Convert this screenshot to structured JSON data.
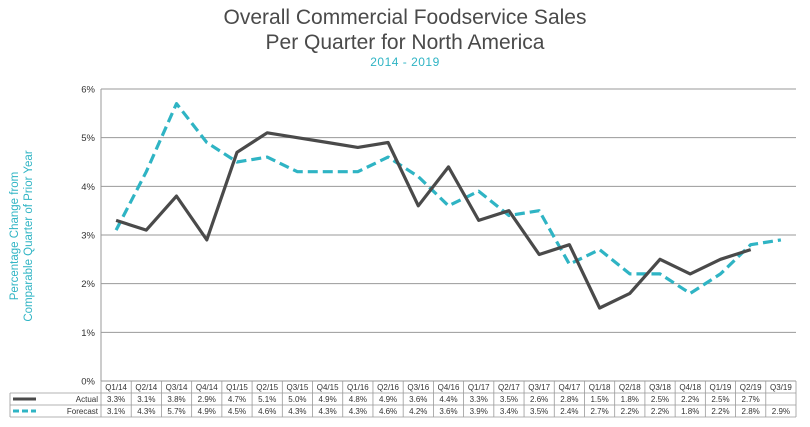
{
  "chart_data": {
    "type": "line",
    "title_line1": "Overall Commercial Foodservice Sales",
    "title_line2": "Per Quarter for North America",
    "subtitle": "2014 - 2019",
    "ylabel_line1": "Percentage Change from",
    "ylabel_line2": "Comparable Quarter of Prior Year",
    "ylim": [
      0,
      6
    ],
    "yticks": [
      "0%",
      "1%",
      "2%",
      "3%",
      "4%",
      "5%",
      "6%"
    ],
    "grid": true,
    "categories": [
      "Q1/14",
      "Q2/14",
      "Q3/14",
      "Q4/14",
      "Q1/15",
      "Q2/15",
      "Q3/15",
      "Q4/15",
      "Q1/16",
      "Q2/16",
      "Q3/16",
      "Q4/16",
      "Q1/17",
      "Q2/17",
      "Q3/17",
      "Q4/17",
      "Q1/18",
      "Q2/18",
      "Q3/18",
      "Q4/18",
      "Q1/19",
      "Q2/19",
      "Q3/19"
    ],
    "series": [
      {
        "name": "Actual",
        "color": "#4a4a4a",
        "style": "solid",
        "values": [
          3.3,
          3.1,
          3.8,
          2.9,
          4.7,
          5.1,
          5.0,
          4.9,
          4.8,
          4.9,
          3.6,
          4.4,
          3.3,
          3.5,
          2.6,
          2.8,
          1.5,
          1.8,
          2.5,
          2.2,
          2.5,
          2.7,
          null
        ],
        "labels": [
          "3.3%",
          "3.1%",
          "3.8%",
          "2.9%",
          "4.7%",
          "5.1%",
          "5.0%",
          "4.9%",
          "4.8%",
          "4.9%",
          "3.6%",
          "4.4%",
          "3.3%",
          "3.5%",
          "2.6%",
          "2.8%",
          "1.5%",
          "1.8%",
          "2.5%",
          "2.2%",
          "2.5%",
          "2.7%",
          ""
        ]
      },
      {
        "name": "Forecast",
        "color": "#2fb4c4",
        "style": "dashed",
        "values": [
          3.1,
          4.3,
          5.7,
          4.9,
          4.5,
          4.6,
          4.3,
          4.3,
          4.3,
          4.6,
          4.2,
          3.6,
          3.9,
          3.4,
          3.5,
          2.4,
          2.7,
          2.2,
          2.2,
          1.8,
          2.2,
          2.8,
          2.9
        ],
        "labels": [
          "3.1%",
          "4.3%",
          "5.7%",
          "4.9%",
          "4.5%",
          "4.6%",
          "4.3%",
          "4.3%",
          "4.3%",
          "4.6%",
          "4.2%",
          "3.6%",
          "3.9%",
          "3.4%",
          "3.5%",
          "2.4%",
          "2.7%",
          "2.2%",
          "2.2%",
          "1.8%",
          "2.2%",
          "2.8%",
          "2.9%"
        ]
      }
    ]
  }
}
